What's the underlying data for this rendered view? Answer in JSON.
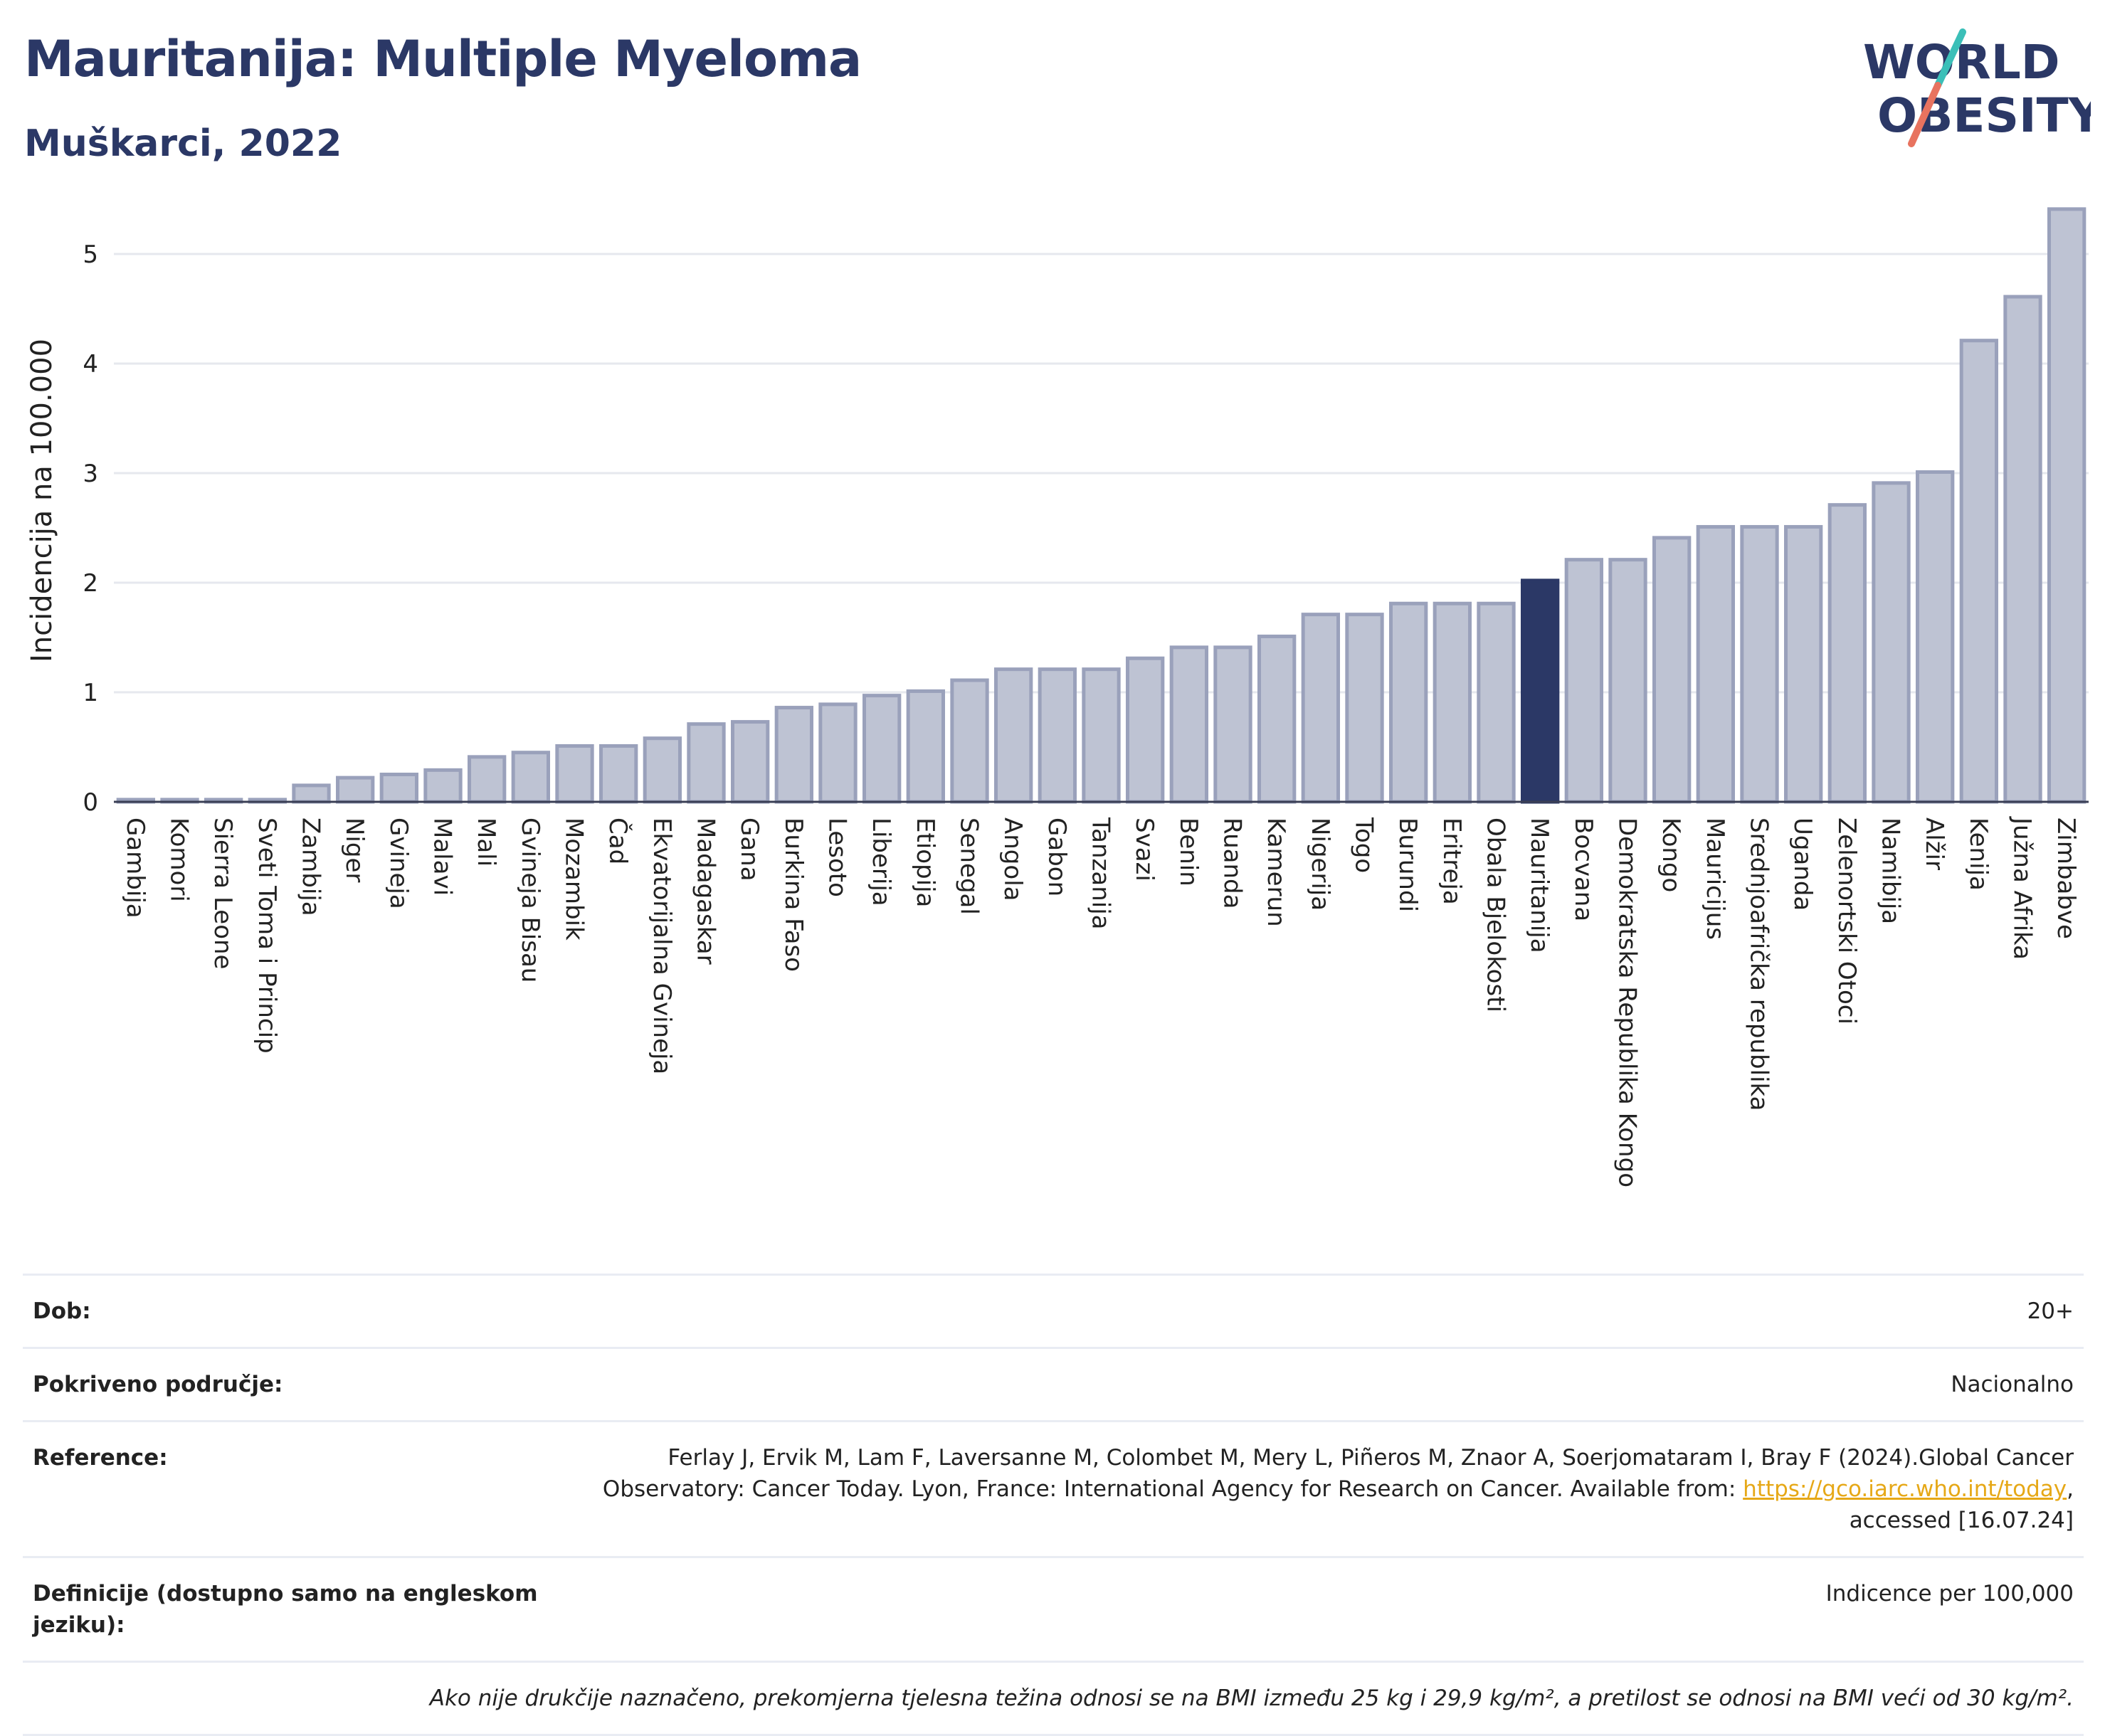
{
  "header": {
    "title": "Mauritanija: Multiple Myeloma",
    "subtitle": "Muškarci, 2022"
  },
  "logo": {
    "line1": "WORLD",
    "line2": "OBESITY"
  },
  "chart_data": {
    "type": "bar",
    "ylabel": "Incidencija na 100.000",
    "xlabel": "",
    "ylim": [
      0,
      5.5
    ],
    "yticks": [
      0,
      1,
      2,
      3,
      4,
      5
    ],
    "grid": true,
    "highlight": "Mauritanija",
    "colors": {
      "bar": "#bec3d3",
      "bar_edge": "#9aa1bb",
      "highlight": "#2b3866"
    },
    "categories": [
      "Gambija",
      "Komori",
      "Sierra Leone",
      "Sveti Toma i Princip",
      "Zambija",
      "Niger",
      "Gvineja",
      "Malavi",
      "Mali",
      "Gvineja Bisau",
      "Mozambik",
      "Čad",
      "Ekvatorijalna Gvineja",
      "Madagaskar",
      "Gana",
      "Burkina Faso",
      "Lesoto",
      "Liberija",
      "Etiopija",
      "Senegal",
      "Angola",
      "Gabon",
      "Tanzanija",
      "Svazi",
      "Benin",
      "Ruanda",
      "Kamerun",
      "Nigerija",
      "Togo",
      "Burundi",
      "Eritreja",
      "Obala Bjelokosti",
      "Mauritanija",
      "Bocvana",
      "Demokratska Republika Kongo",
      "Kongo",
      "Mauricijus",
      "Srednjoafrička republika",
      "Uganda",
      "Zelenortski Otoci",
      "Namibija",
      "Alžir",
      "Kenija",
      "Južna Afrika",
      "Zimbabve"
    ],
    "values": [
      0.02,
      0.02,
      0.02,
      0.02,
      0.15,
      0.22,
      0.25,
      0.29,
      0.41,
      0.45,
      0.51,
      0.51,
      0.58,
      0.71,
      0.73,
      0.86,
      0.89,
      0.97,
      1.01,
      1.11,
      1.21,
      1.21,
      1.21,
      1.31,
      1.41,
      1.41,
      1.51,
      1.71,
      1.71,
      1.81,
      1.81,
      1.81,
      2.02,
      2.21,
      2.21,
      2.41,
      2.51,
      2.51,
      2.51,
      2.71,
      2.91,
      3.01,
      4.21,
      4.61,
      5.41
    ]
  },
  "info": {
    "dob_label": "Dob:",
    "dob_value": "20+",
    "coverage_label": "Pokriveno područje:",
    "coverage_value": "Nacionalno",
    "reference_label": "Reference:",
    "reference_text_1": "Ferlay J, Ervik M, Lam F, Laversanne M, Colombet M, Mery L, Piñeros M, Znaor A, Soerjomataram I, Bray F (2024).Global Cancer",
    "reference_text_2": "Observatory: Cancer Today. Lyon, France: International Agency for Research on Cancer. Available from: ",
    "reference_link": "https://gco.iarc.who.int/today",
    "reference_text_3": ",",
    "reference_text_4": "accessed [16.07.24]",
    "definitions_label": "Definicije (dostupno samo na engleskom jeziku):",
    "definitions_value": "Indicence per 100,000",
    "footnote": "Ako nije drukčije naznačeno, prekomjerna tjelesna težina odnosi se na BMI između 25 kg i 29,9 kg/m², a pretilost se odnosi na BMI veći od 30 kg/m²."
  }
}
